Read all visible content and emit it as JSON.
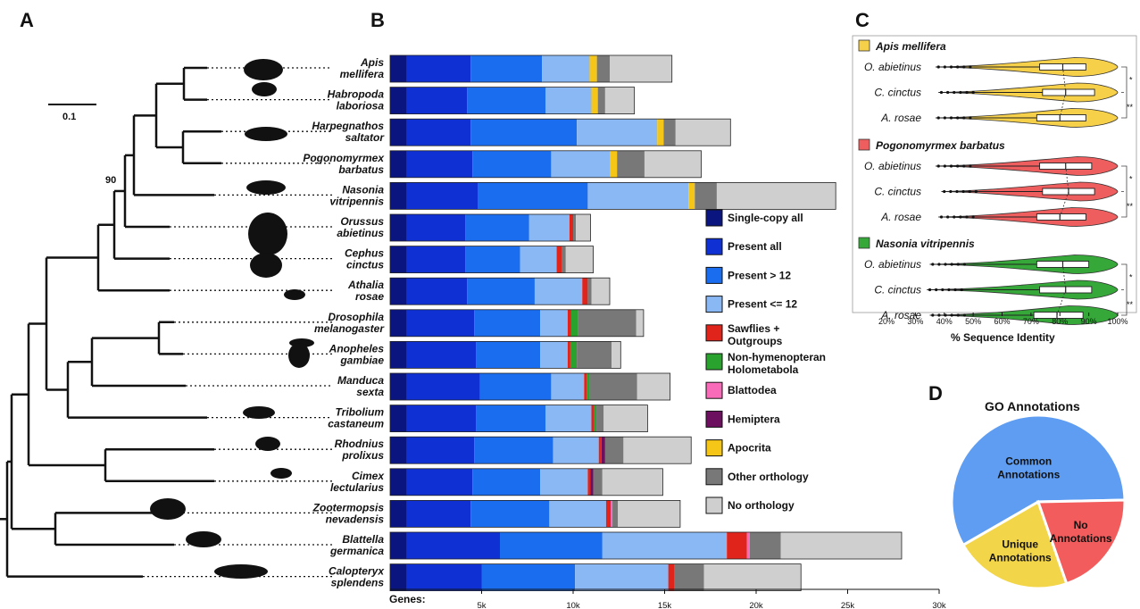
{
  "panels": {
    "a": "A",
    "b": "B",
    "c": "C",
    "d": "D"
  },
  "species": [
    {
      "line1": "Apis",
      "line2": "mellifera"
    },
    {
      "line1": "Habropoda",
      "line2": "laboriosa"
    },
    {
      "line1": "Harpegnathos",
      "line2": "saltator"
    },
    {
      "line1": "Pogonomyrmex",
      "line2": "barbatus"
    },
    {
      "line1": "Nasonia",
      "line2": "vitripennis"
    },
    {
      "line1": "Orussus",
      "line2": "abietinus"
    },
    {
      "line1": "Cephus",
      "line2": "cinctus"
    },
    {
      "line1": "Athalia",
      "line2": "rosae"
    },
    {
      "line1": "Drosophila",
      "line2": "melanogaster"
    },
    {
      "line1": "Anopheles",
      "line2": "gambiae"
    },
    {
      "line1": "Manduca",
      "line2": "sexta"
    },
    {
      "line1": "Tribolium",
      "line2": "castaneum"
    },
    {
      "line1": "Rhodnius",
      "line2": "prolixus"
    },
    {
      "line1": "Cimex",
      "line2": "lectularius"
    },
    {
      "line1": "Zootermopsis",
      "line2": "nevadensis"
    },
    {
      "line1": "Blattella",
      "line2": "germanica"
    },
    {
      "line1": "Calopteryx",
      "line2": "splendens"
    }
  ],
  "tree": {
    "scale_label": "0.1",
    "bootstrap_label": "90"
  },
  "chart_data": [
    {
      "type": "bar",
      "orientation": "horizontal",
      "stacked": true,
      "categories": [
        "Apis mellifera",
        "Habropoda laboriosa",
        "Harpegnathos saltator",
        "Pogonomyrmex barbatus",
        "Nasonia vitripennis",
        "Orussus abietinus",
        "Cephus cinctus",
        "Athalia rosae",
        "Drosophila melanogaster",
        "Anopheles gambiae",
        "Manduca sexta",
        "Tribolium castaneum",
        "Rhodnius prolixus",
        "Cimex lectularius",
        "Zootermopsis nevadensis",
        "Blattella germanica",
        "Calopteryx splendens"
      ],
      "xlabel": "Genes:",
      "xlim": [
        0,
        30000
      ],
      "xticks": [
        5000,
        10000,
        15000,
        20000,
        25000,
        30000
      ],
      "xtick_labels": [
        "5k",
        "10k",
        "15k",
        "20k",
        "25k",
        "30k"
      ],
      "legend_position": "right",
      "series": [
        {
          "name": "Single-copy all",
          "color": "#0b1580",
          "values": [
            900,
            900,
            900,
            900,
            900,
            900,
            900,
            900,
            900,
            900,
            900,
            900,
            900,
            900,
            900,
            900,
            900
          ]
        },
        {
          "name": "Present all",
          "color": "#0f31d4",
          "values": [
            3500,
            3300,
            3500,
            3600,
            3900,
            3200,
            3200,
            3300,
            3700,
            3800,
            4000,
            3800,
            3700,
            3600,
            3500,
            5100,
            4100
          ]
        },
        {
          "name": "Present > 12",
          "color": "#1b6df0",
          "values": [
            3900,
            4300,
            5800,
            4300,
            6000,
            3500,
            3000,
            3700,
            3600,
            3500,
            3900,
            3800,
            4300,
            3700,
            4300,
            5600,
            5100
          ]
        },
        {
          "name": "Present <= 12",
          "color": "#8ab8f4",
          "values": [
            2600,
            2500,
            4400,
            3200,
            5500,
            2200,
            2000,
            2600,
            1500,
            1500,
            1800,
            2500,
            2500,
            2600,
            3100,
            6800,
            5100
          ]
        },
        {
          "name": "Sawflies + Outgroups",
          "color": "#e0231b",
          "values": [
            0,
            0,
            0,
            0,
            0,
            200,
            300,
            300,
            200,
            150,
            150,
            150,
            150,
            150,
            250,
            1100,
            350
          ]
        },
        {
          "name": "Non-hymenopteran Holometabola",
          "color": "#2aa22e",
          "values": [
            0,
            0,
            0,
            0,
            0,
            0,
            0,
            0,
            350,
            350,
            150,
            120,
            0,
            0,
            0,
            0,
            0
          ]
        },
        {
          "name": "Blattodea",
          "color": "#f76bb8",
          "values": [
            0,
            0,
            0,
            0,
            0,
            0,
            0,
            0,
            0,
            0,
            0,
            0,
            0,
            0,
            100,
            150,
            0
          ]
        },
        {
          "name": "Hemiptera",
          "color": "#6b0f5e",
          "values": [
            0,
            0,
            0,
            0,
            0,
            0,
            0,
            0,
            0,
            0,
            0,
            0,
            200,
            150,
            0,
            0,
            0
          ]
        },
        {
          "name": "Apocrita",
          "color": "#f5c518",
          "values": [
            400,
            350,
            350,
            400,
            350,
            0,
            0,
            0,
            0,
            0,
            0,
            0,
            0,
            0,
            0,
            0,
            0
          ]
        },
        {
          "name": "Other orthology",
          "color": "#787878",
          "values": [
            700,
            400,
            650,
            1500,
            1200,
            150,
            200,
            200,
            3200,
            1900,
            2600,
            400,
            1000,
            500,
            300,
            1700,
            1600
          ]
        },
        {
          "name": "No orthology",
          "color": "#cfcfcf",
          "values": [
            3400,
            1600,
            3000,
            3100,
            6500,
            800,
            1500,
            1000,
            400,
            500,
            1800,
            2400,
            3700,
            3300,
            3400,
            6600,
            5300
          ]
        }
      ]
    },
    {
      "type": "violin",
      "xlabel": "% Sequence Identity",
      "xlim": [
        20,
        100
      ],
      "xticks": [
        20,
        30,
        40,
        50,
        60,
        70,
        80,
        90,
        100
      ],
      "xtick_labels": [
        "20%",
        "30%",
        "40%",
        "50%",
        "60%",
        "70%",
        "80%",
        "90%",
        "100%"
      ],
      "groups": [
        {
          "name": "Apis mellifera",
          "color": "#f7d04a",
          "items": [
            {
              "label": "O. abietinus",
              "q1": 73,
              "median": 81,
              "q3": 89,
              "min": 37
            },
            {
              "label": "C. cinctus",
              "q1": 74,
              "median": 82,
              "q3": 92,
              "min": 38
            },
            {
              "label": "A. rosae",
              "q1": 72,
              "median": 80,
              "q3": 89,
              "min": 37
            }
          ],
          "significance": [
            "*",
            "**"
          ]
        },
        {
          "name": "Pogonomyrmex barbatus",
          "color": "#ee5e5e",
          "items": [
            {
              "label": "O. abietinus",
              "q1": 73,
              "median": 82,
              "q3": 91,
              "min": 37
            },
            {
              "label": "C. cinctus",
              "q1": 74,
              "median": 83,
              "q3": 92,
              "min": 39
            },
            {
              "label": "A. rosae",
              "q1": 72,
              "median": 80,
              "q3": 89,
              "min": 38
            }
          ],
          "significance": [
            "*",
            "**"
          ]
        },
        {
          "name": "Nasonia vitripennis",
          "color": "#36a83a",
          "items": [
            {
              "label": "O. abietinus",
              "q1": 72,
              "median": 81,
              "q3": 90,
              "min": 35
            },
            {
              "label": "C. cinctus",
              "q1": 73,
              "median": 82,
              "q3": 91,
              "min": 34
            },
            {
              "label": "A. rosae",
              "q1": 71,
              "median": 79,
              "q3": 88,
              "min": 35
            }
          ],
          "significance": [
            "*",
            "**"
          ]
        }
      ]
    },
    {
      "type": "pie",
      "title": "GO Annotations",
      "slices": [
        {
          "label": "Common Annotations",
          "line1": "Common",
          "line2": "Annotations",
          "value": 58,
          "color": "#5e9df2"
        },
        {
          "label": "Unique Annotations",
          "line1": "Unique",
          "line2": "Annotations",
          "value": 22,
          "color": "#f2d548"
        },
        {
          "label": "No Annotations",
          "line1": "No",
          "line2": "Annotations",
          "value": 20,
          "color": "#f25c5c"
        }
      ]
    }
  ]
}
